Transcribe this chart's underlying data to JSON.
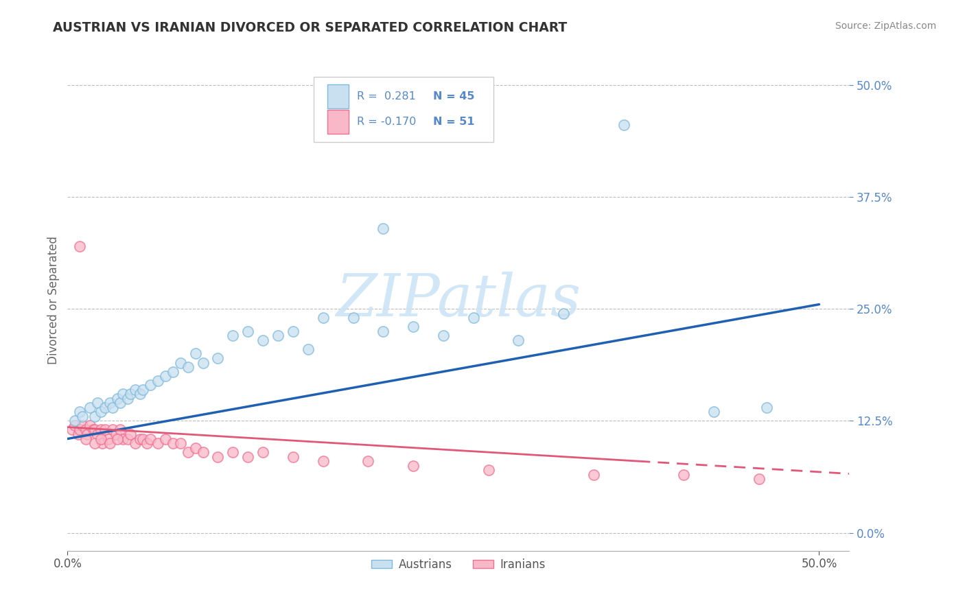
{
  "title": "AUSTRIAN VS IRANIAN DIVORCED OR SEPARATED CORRELATION CHART",
  "ylabel": "Divorced or Separated",
  "source": "Source: ZipAtlas.com",
  "y_ticks": [
    0.0,
    0.125,
    0.25,
    0.375,
    0.5
  ],
  "y_tick_labels": [
    "0.0%",
    "12.5%",
    "25.0%",
    "37.5%",
    "50.0%"
  ],
  "x_tick_labels": [
    "0.0%",
    "50.0%"
  ],
  "x_lim": [
    0.0,
    0.52
  ],
  "y_lim": [
    -0.02,
    0.54
  ],
  "legend_r1_label": "R =  0.281",
  "legend_n1_label": "N = 45",
  "legend_r2_label": "R = -0.170",
  "legend_n2_label": "N = 51",
  "legend_austrians": "Austrians",
  "legend_iranians": "Iranians",
  "blue_color": "#7fb9dc",
  "blue_fill": "#c8e0f0",
  "pink_color": "#f07090",
  "pink_fill": "#f9b8c8",
  "blue_line_color": "#2060b0",
  "pink_line_color": "#e05878",
  "watermark_color": "#cce4f5",
  "background_color": "#ffffff",
  "grid_color": "#bbbbbb",
  "title_color": "#333333",
  "tick_color": "#5588cc",
  "source_color": "#888888",
  "aus_line_start_y": 0.105,
  "aus_line_end_y": 0.255,
  "iran_line_start_y": 0.118,
  "iran_line_end_y": 0.068,
  "aus_scatter_x": [
    0.005,
    0.008,
    0.01,
    0.015,
    0.018,
    0.02,
    0.022,
    0.025,
    0.028,
    0.03,
    0.033,
    0.035,
    0.037,
    0.04,
    0.042,
    0.045,
    0.048,
    0.05,
    0.055,
    0.06,
    0.065,
    0.07,
    0.075,
    0.08,
    0.085,
    0.09,
    0.1,
    0.11,
    0.12,
    0.13,
    0.14,
    0.15,
    0.17,
    0.19,
    0.21,
    0.23,
    0.25,
    0.27,
    0.3,
    0.33,
    0.37,
    0.43,
    0.465,
    0.21,
    0.16
  ],
  "aus_scatter_y": [
    0.125,
    0.135,
    0.13,
    0.14,
    0.13,
    0.145,
    0.135,
    0.14,
    0.145,
    0.14,
    0.15,
    0.145,
    0.155,
    0.15,
    0.155,
    0.16,
    0.155,
    0.16,
    0.165,
    0.17,
    0.175,
    0.18,
    0.19,
    0.185,
    0.2,
    0.19,
    0.195,
    0.22,
    0.225,
    0.215,
    0.22,
    0.225,
    0.24,
    0.24,
    0.225,
    0.23,
    0.22,
    0.24,
    0.215,
    0.245,
    0.455,
    0.135,
    0.14,
    0.34,
    0.205
  ],
  "iran_scatter_x": [
    0.003,
    0.005,
    0.007,
    0.008,
    0.01,
    0.012,
    0.013,
    0.015,
    0.017,
    0.018,
    0.02,
    0.022,
    0.023,
    0.025,
    0.027,
    0.03,
    0.032,
    0.035,
    0.037,
    0.04,
    0.042,
    0.045,
    0.048,
    0.05,
    0.053,
    0.055,
    0.06,
    0.065,
    0.07,
    0.075,
    0.08,
    0.085,
    0.09,
    0.1,
    0.11,
    0.12,
    0.13,
    0.15,
    0.17,
    0.2,
    0.23,
    0.28,
    0.35,
    0.41,
    0.46,
    0.008,
    0.012,
    0.018,
    0.022,
    0.028,
    0.033
  ],
  "iran_scatter_y": [
    0.115,
    0.12,
    0.11,
    0.115,
    0.12,
    0.115,
    0.11,
    0.12,
    0.115,
    0.115,
    0.11,
    0.115,
    0.1,
    0.115,
    0.105,
    0.115,
    0.11,
    0.115,
    0.105,
    0.105,
    0.11,
    0.1,
    0.105,
    0.105,
    0.1,
    0.105,
    0.1,
    0.105,
    0.1,
    0.1,
    0.09,
    0.095,
    0.09,
    0.085,
    0.09,
    0.085,
    0.09,
    0.085,
    0.08,
    0.08,
    0.075,
    0.07,
    0.065,
    0.065,
    0.06,
    0.32,
    0.105,
    0.1,
    0.105,
    0.1,
    0.105
  ]
}
